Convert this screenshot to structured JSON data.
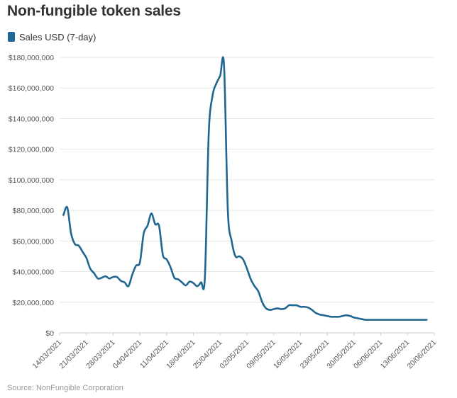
{
  "title": "Non-fungible token sales",
  "source": "Source: NonFungible Corporation",
  "colors": {
    "series": "#1f6690",
    "grid": "#e6e6e6",
    "axis_text": "#555555",
    "source_text": "#999999"
  },
  "chart_data": {
    "type": "line",
    "title": "Non-fungible token sales",
    "legend_position": "top-left",
    "grid": true,
    "ylim": [
      0,
      180000000
    ],
    "y_ticks": [
      0,
      20000000,
      40000000,
      60000000,
      80000000,
      100000000,
      120000000,
      140000000,
      160000000,
      180000000
    ],
    "y_tick_labels": [
      "$0",
      "$20,000,000",
      "$40,000,000",
      "$60,000,000",
      "$80,000,000",
      "$100,000,000",
      "$120,000,000",
      "$140,000,000",
      "$160,000,000",
      "$180,000,000"
    ],
    "x_ticks": [
      "2021-03-14",
      "2021-03-21",
      "2021-03-28",
      "2021-04-04",
      "2021-04-11",
      "2021-04-18",
      "2021-04-25",
      "2021-05-02",
      "2021-05-09",
      "2021-05-16",
      "2021-05-23",
      "2021-05-30",
      "2021-06-06",
      "2021-06-13",
      "2021-06-20"
    ],
    "x_tick_labels": [
      "14/03/2021",
      "21/03/2021",
      "28/03/2021",
      "04/04/2021",
      "11/04/2021",
      "18/04/2021",
      "25/04/2021",
      "02/05/2021",
      "09/05/2021",
      "16/05/2021",
      "23/05/2021",
      "30/05/2021",
      "06/06/2021",
      "13/06/2021",
      "20/06/2021"
    ],
    "series": [
      {
        "name": "Sales USD (7-day)",
        "x": [
          "2021-03-15",
          "2021-03-16",
          "2021-03-17",
          "2021-03-18",
          "2021-03-19",
          "2021-03-20",
          "2021-03-21",
          "2021-03-22",
          "2021-03-23",
          "2021-03-24",
          "2021-03-25",
          "2021-03-26",
          "2021-03-27",
          "2021-03-28",
          "2021-03-29",
          "2021-03-30",
          "2021-03-31",
          "2021-04-01",
          "2021-04-02",
          "2021-04-03",
          "2021-04-04",
          "2021-04-05",
          "2021-04-06",
          "2021-04-07",
          "2021-04-08",
          "2021-04-09",
          "2021-04-10",
          "2021-04-11",
          "2021-04-12",
          "2021-04-13",
          "2021-04-14",
          "2021-04-15",
          "2021-04-16",
          "2021-04-17",
          "2021-04-18",
          "2021-04-19",
          "2021-04-20",
          "2021-04-21",
          "2021-04-22",
          "2021-04-23",
          "2021-04-24",
          "2021-04-25",
          "2021-04-26",
          "2021-04-27",
          "2021-04-28",
          "2021-04-29",
          "2021-04-30",
          "2021-05-01",
          "2021-05-02",
          "2021-05-03",
          "2021-05-04",
          "2021-05-05",
          "2021-05-06",
          "2021-05-07",
          "2021-05-08",
          "2021-05-09",
          "2021-05-10",
          "2021-05-11",
          "2021-05-12",
          "2021-05-13",
          "2021-05-14",
          "2021-05-15",
          "2021-05-16",
          "2021-05-17",
          "2021-05-18",
          "2021-05-19",
          "2021-05-20",
          "2021-05-21",
          "2021-05-22",
          "2021-05-23",
          "2021-05-24",
          "2021-05-25",
          "2021-05-26",
          "2021-05-27",
          "2021-05-28",
          "2021-05-29",
          "2021-05-30",
          "2021-05-31",
          "2021-06-01",
          "2021-06-02",
          "2021-06-03",
          "2021-06-04",
          "2021-06-05",
          "2021-06-06",
          "2021-06-07",
          "2021-06-08",
          "2021-06-09",
          "2021-06-10",
          "2021-06-11",
          "2021-06-12",
          "2021-06-13",
          "2021-06-14",
          "2021-06-15",
          "2021-06-16",
          "2021-06-17",
          "2021-06-18"
        ],
        "values": [
          77000000,
          82000000,
          65000000,
          58000000,
          57000000,
          53000000,
          49000000,
          42000000,
          39000000,
          35500000,
          36000000,
          37000000,
          35500000,
          36500000,
          36500000,
          34000000,
          33000000,
          30500000,
          38000000,
          44000000,
          46000000,
          65000000,
          70000000,
          78000000,
          71000000,
          70000000,
          51000000,
          48000000,
          43000000,
          36000000,
          35000000,
          33000000,
          31000000,
          33500000,
          32500000,
          30500000,
          33000000,
          36000000,
          130000000,
          155000000,
          163000000,
          168000000,
          175000000,
          80000000,
          60000000,
          50000000,
          50000000,
          48000000,
          42000000,
          35000000,
          30500000,
          27000000,
          20000000,
          16000000,
          15000000,
          15500000,
          16000000,
          15500000,
          16000000,
          18000000,
          18000000,
          18000000,
          17000000,
          17000000,
          16500000,
          15000000,
          13000000,
          12000000,
          11500000,
          11000000,
          10500000,
          10500000,
          10500000,
          11000000,
          11500000,
          11000000,
          10000000,
          9500000,
          9000000,
          8500000,
          8500000,
          8500000,
          8500000,
          8500000,
          8500000,
          8500000,
          8500000,
          8500000,
          8500000,
          8500000,
          8500000,
          8500000,
          8500000,
          8500000,
          8500000,
          8500000
        ]
      }
    ]
  }
}
